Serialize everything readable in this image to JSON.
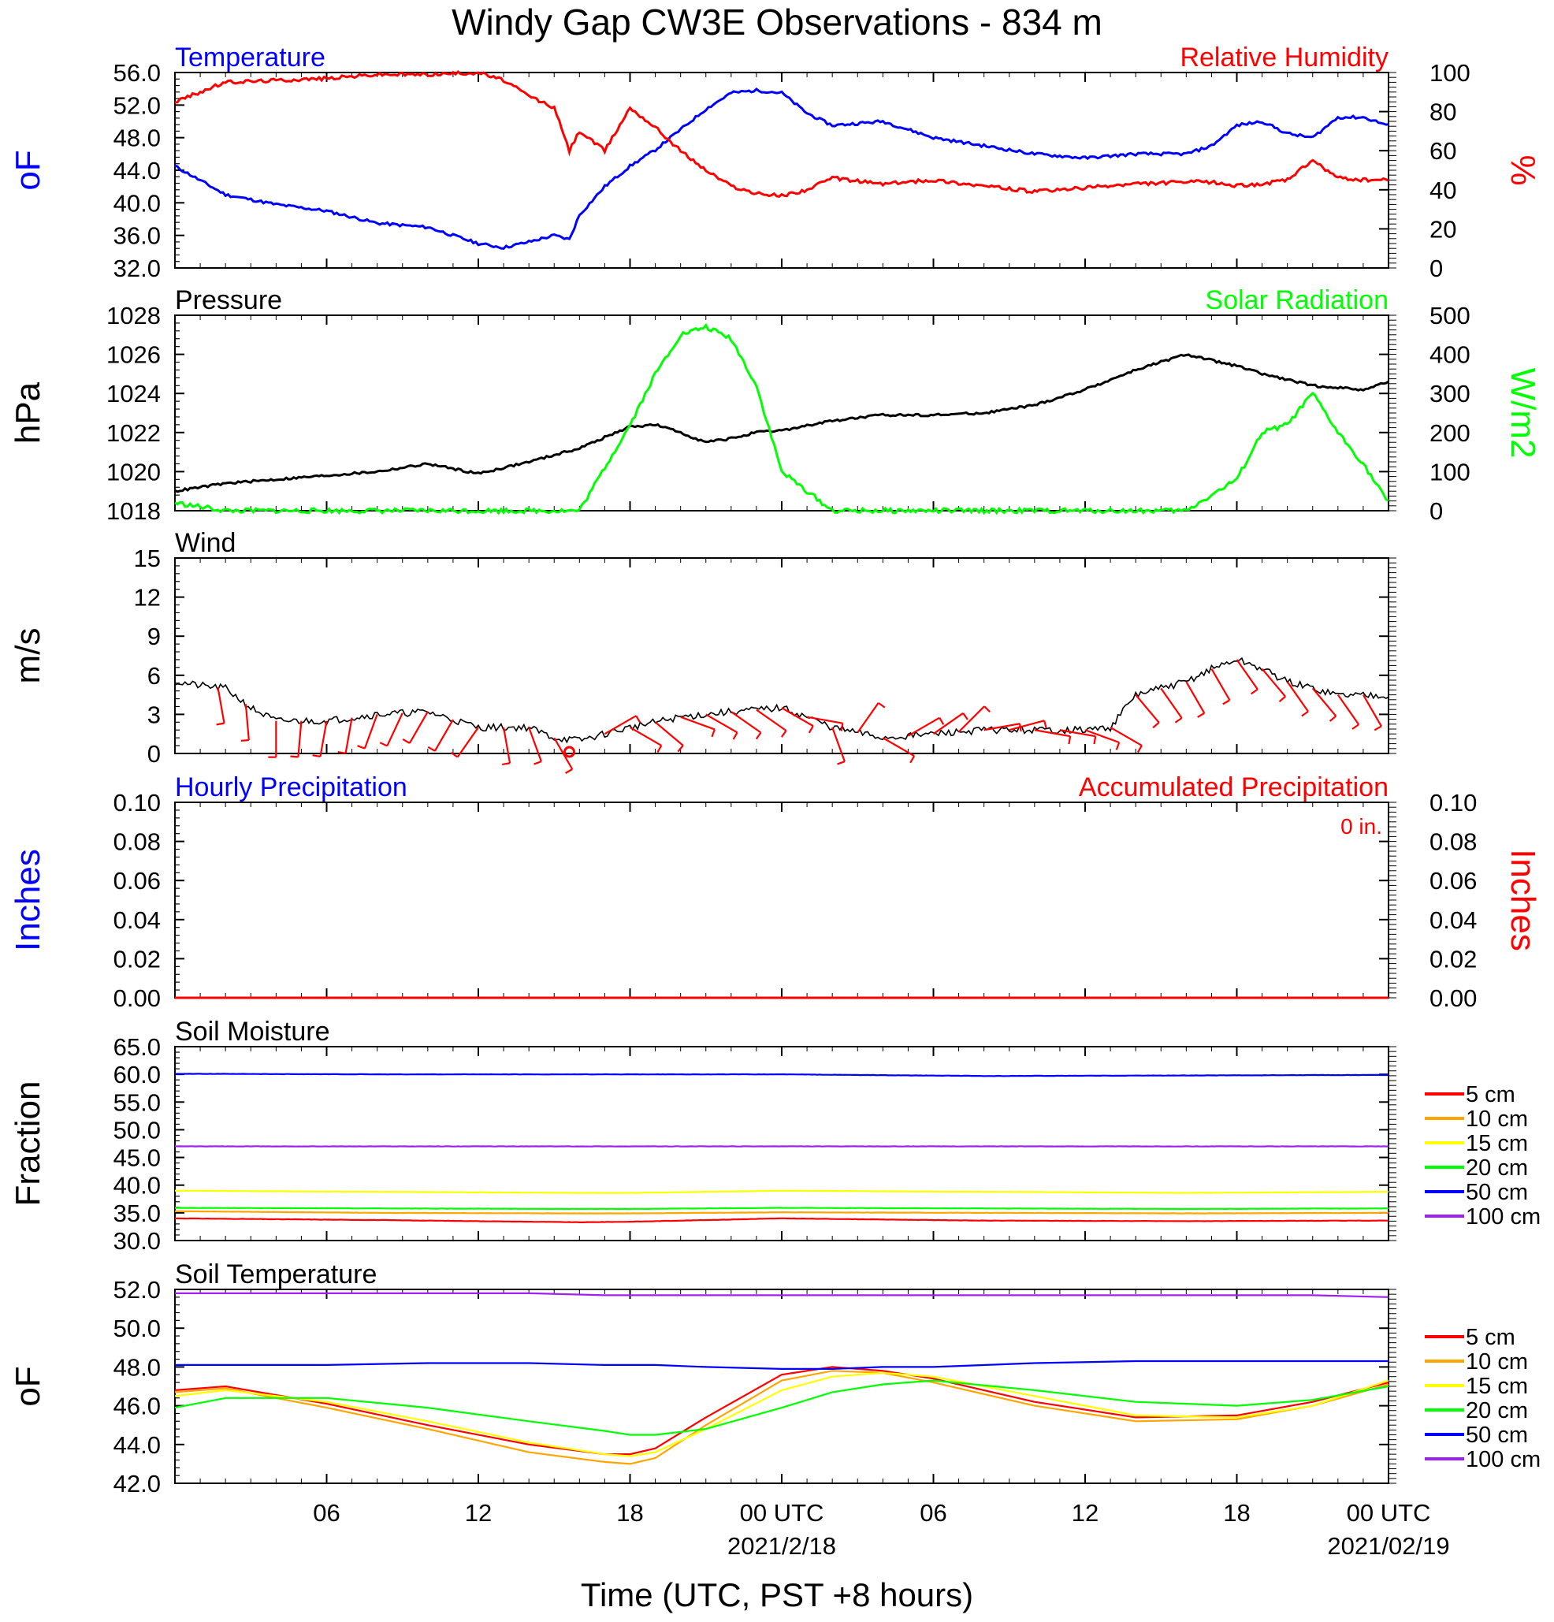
{
  "title": "Windy Gap CW3E Observations - 834 m",
  "x_axis": {
    "title": "Time (UTC, PST +8 hours)",
    "tick_labels": [
      "06",
      "12",
      "18",
      "00 UTC",
      "06",
      "12",
      "18",
      "00 UTC"
    ],
    "date_labels": [
      "2021/2/18",
      "2021/02/19"
    ]
  },
  "colors": {
    "blue": "#0000ff",
    "red": "#ff0000",
    "green": "#00ff00",
    "black": "#000000"
  },
  "chart_data": [
    {
      "type": "line",
      "panel": "Temperature / Relative Humidity",
      "title_left": "Temperature",
      "title_right": "Relative Humidity",
      "ylabel_left": "oF",
      "ylabel_right": "%",
      "ylim_left": [
        32,
        56
      ],
      "ylim_right": [
        0,
        100
      ],
      "yticks_left": [
        "32.0",
        "36.0",
        "40.0",
        "44.0",
        "48.0",
        "52.0",
        "56.0"
      ],
      "yticks_right": [
        "0",
        "20",
        "40",
        "60",
        "80",
        "100"
      ],
      "x_hours": [
        0,
        2,
        4,
        6,
        8,
        10,
        12,
        13,
        14,
        15,
        15.6,
        16,
        17,
        18,
        19,
        20,
        21,
        22,
        23,
        24,
        25,
        26,
        28,
        30,
        32,
        34,
        36,
        38,
        40,
        41,
        42,
        43,
        44,
        45,
        46,
        47,
        48
      ],
      "series": [
        {
          "name": "Temperature",
          "color": "#0000ff",
          "axis": "left",
          "values": [
            44.5,
            41.0,
            39.8,
            39.0,
            37.5,
            37.0,
            35.0,
            34.5,
            35.2,
            36.0,
            35.5,
            38.5,
            42.0,
            44.5,
            46.5,
            49.0,
            51.5,
            53.5,
            53.8,
            53.5,
            51.0,
            49.5,
            50.0,
            48.0,
            47.0,
            46.0,
            45.5,
            46.0,
            46.0,
            47.0,
            49.5,
            50.0,
            48.5,
            48.0,
            50.5,
            50.5,
            49.5
          ]
        },
        {
          "name": "Relative Humidity",
          "color": "#ff0000",
          "axis": "right",
          "values": [
            85,
            95,
            96,
            97,
            99,
            99,
            100,
            96,
            88,
            82,
            60,
            70,
            60,
            82,
            72,
            60,
            50,
            42,
            38,
            37,
            40,
            46,
            43,
            45,
            42,
            39,
            41,
            43,
            44,
            44,
            42,
            43,
            45,
            55,
            46,
            45,
            45
          ]
        }
      ]
    },
    {
      "type": "line",
      "panel": "Pressure / Solar Radiation",
      "title_left": "Pressure",
      "title_right": "Solar Radiation",
      "ylabel_left": "hPa",
      "ylabel_right": "W/m2",
      "ylim_left": [
        1018,
        1028
      ],
      "ylim_right": [
        0,
        500
      ],
      "yticks_left": [
        "1018",
        "1020",
        "1022",
        "1024",
        "1026",
        "1028"
      ],
      "yticks_right": [
        "0",
        "100",
        "200",
        "300",
        "400",
        "500"
      ],
      "x_hours": [
        0,
        2,
        4,
        6,
        8,
        10,
        12,
        14,
        16,
        18,
        19,
        20,
        21,
        22,
        23,
        24,
        26,
        28,
        30,
        32,
        34,
        36,
        38,
        40,
        42,
        43,
        44,
        45,
        46,
        47,
        48
      ],
      "series": [
        {
          "name": "Pressure",
          "color": "#000000",
          "axis": "left",
          "values": [
            1019.0,
            1019.4,
            1019.6,
            1019.8,
            1020.0,
            1020.4,
            1019.9,
            1020.5,
            1021.2,
            1022.3,
            1022.4,
            1022.0,
            1021.5,
            1021.7,
            1022.0,
            1022.1,
            1022.6,
            1022.9,
            1022.9,
            1023.0,
            1023.4,
            1024.2,
            1025.2,
            1026.0,
            1025.4,
            1025.0,
            1024.7,
            1024.4,
            1024.3,
            1024.2,
            1024.6
          ]
        },
        {
          "name": "Solar Radiation",
          "color": "#00ff00",
          "axis": "right",
          "values": [
            20,
            0,
            0,
            0,
            0,
            0,
            0,
            0,
            0,
            220,
            350,
            450,
            470,
            440,
            320,
            100,
            0,
            0,
            0,
            0,
            0,
            0,
            0,
            0,
            80,
            200,
            220,
            300,
            200,
            120,
            20
          ]
        }
      ]
    },
    {
      "type": "line",
      "panel": "Wind",
      "title_left": "Wind",
      "ylabel_left": "m/s",
      "ylim_left": [
        0,
        15
      ],
      "yticks_left": [
        "0",
        "3",
        "6",
        "9",
        "12",
        "15"
      ],
      "x_hours": [
        0,
        1,
        2,
        3,
        4,
        6,
        8,
        10,
        12,
        14,
        15,
        16,
        18,
        20,
        22,
        24,
        25,
        26,
        28,
        30,
        32,
        34,
        36,
        37,
        38,
        39,
        40,
        41,
        42,
        43,
        44,
        46,
        48
      ],
      "series": [
        {
          "name": "Wind Speed",
          "color": "#000000",
          "axis": "left",
          "values": [
            5.5,
            5.2,
            5.0,
            3.5,
            2.5,
            2.5,
            3.0,
            3.2,
            2.0,
            2.0,
            1.2,
            1.0,
            2.0,
            2.8,
            3.2,
            3.5,
            2.8,
            2.0,
            1.2,
            1.5,
            1.8,
            1.8,
            1.8,
            2.0,
            4.5,
            5.0,
            5.5,
            6.5,
            7.2,
            6.5,
            5.5,
            4.5,
            4.5
          ]
        }
      ],
      "calm_marker_hour": 15.6,
      "barbs": [
        {
          "h": 1.7,
          "dir": 350
        },
        {
          "h": 2.8,
          "dir": 355
        },
        {
          "h": 4.0,
          "dir": 0
        },
        {
          "h": 5.0,
          "dir": 5
        },
        {
          "h": 6.0,
          "dir": 10
        },
        {
          "h": 7.0,
          "dir": 10
        },
        {
          "h": 8.0,
          "dir": 20
        },
        {
          "h": 9.0,
          "dir": 25
        },
        {
          "h": 10.0,
          "dir": 30
        },
        {
          "h": 11.0,
          "dir": 30
        },
        {
          "h": 12.0,
          "dir": 35
        },
        {
          "h": 13.0,
          "dir": 350
        },
        {
          "h": 14.0,
          "dir": 340
        },
        {
          "h": 15.0,
          "dir": 330
        },
        {
          "h": 17.0,
          "dir": 240
        },
        {
          "h": 18.0,
          "dir": 300
        },
        {
          "h": 19.0,
          "dir": 310
        },
        {
          "h": 20.0,
          "dir": 290
        },
        {
          "h": 21.0,
          "dir": 300
        },
        {
          "h": 22.0,
          "dir": 305
        },
        {
          "h": 23.0,
          "dir": 305
        },
        {
          "h": 24.0,
          "dir": 300
        },
        {
          "h": 25.0,
          "dir": 280
        },
        {
          "h": 26.0,
          "dir": 340
        },
        {
          "h": 27.0,
          "dir": 215
        },
        {
          "h": 28.0,
          "dir": 300
        },
        {
          "h": 29.0,
          "dir": 240
        },
        {
          "h": 30.0,
          "dir": 235
        },
        {
          "h": 31.0,
          "dir": 225
        },
        {
          "h": 32.0,
          "dir": 260
        },
        {
          "h": 33.0,
          "dir": 255
        },
        {
          "h": 34.0,
          "dir": 280
        },
        {
          "h": 35.0,
          "dir": 280
        },
        {
          "h": 36.0,
          "dir": 290
        },
        {
          "h": 37.0,
          "dir": 300
        },
        {
          "h": 38.0,
          "dir": 320
        },
        {
          "h": 39.0,
          "dir": 325
        },
        {
          "h": 40.0,
          "dir": 330
        },
        {
          "h": 41.0,
          "dir": 330
        },
        {
          "h": 42.0,
          "dir": 325
        },
        {
          "h": 43.0,
          "dir": 320
        },
        {
          "h": 44.0,
          "dir": 325
        },
        {
          "h": 45.0,
          "dir": 320
        },
        {
          "h": 46.0,
          "dir": 325
        },
        {
          "h": 47.0,
          "dir": 330
        }
      ]
    },
    {
      "type": "line",
      "panel": "Precipitation",
      "title_left": "Hourly Precipitation",
      "title_right": "Accumulated Precipitation",
      "annotation": "0 in.",
      "ylabel_left": "Inches",
      "ylabel_right": "Inches",
      "ylim_left": [
        0,
        0.1
      ],
      "ylim_right": [
        0,
        0.1
      ],
      "yticks_left": [
        "0.00",
        "0.02",
        "0.04",
        "0.06",
        "0.08",
        "0.10"
      ],
      "yticks_right": [
        "0.00",
        "0.02",
        "0.04",
        "0.06",
        "0.08",
        "0.10"
      ],
      "x_hours": [
        0,
        48
      ],
      "series": [
        {
          "name": "Hourly Precipitation",
          "color": "#0000ff",
          "axis": "left",
          "values": [
            0,
            0
          ]
        },
        {
          "name": "Accumulated Precipitation",
          "color": "#ff0000",
          "axis": "right",
          "values": [
            0,
            0
          ]
        }
      ]
    },
    {
      "type": "line",
      "panel": "Soil Moisture",
      "title_left": "Soil Moisture",
      "ylabel_left": "Fraction",
      "ylim_left": [
        30,
        65
      ],
      "yticks_left": [
        "30.0",
        "35.0",
        "40.0",
        "45.0",
        "50.0",
        "55.0",
        "60.0",
        "65.0"
      ],
      "x_hours": [
        0,
        8,
        16,
        18,
        24,
        32,
        40,
        48
      ],
      "series": [
        {
          "name": "5 cm",
          "color": "#ff0000",
          "values": [
            34.0,
            33.7,
            33.3,
            33.4,
            34.0,
            33.6,
            33.5,
            33.6
          ]
        },
        {
          "name": "10 cm",
          "color": "#ffa500",
          "values": [
            35.3,
            35.0,
            34.9,
            34.9,
            35.1,
            35.0,
            34.9,
            35.0
          ]
        },
        {
          "name": "15 cm",
          "color": "#ffff00",
          "values": [
            39.0,
            38.8,
            38.6,
            38.6,
            39.0,
            38.8,
            38.6,
            38.8
          ]
        },
        {
          "name": "20 cm",
          "color": "#00ff00",
          "values": [
            35.9,
            35.8,
            35.7,
            35.7,
            35.9,
            35.8,
            35.7,
            35.8
          ]
        },
        {
          "name": "50 cm",
          "color": "#0000ff",
          "values": [
            60.1,
            60.0,
            60.0,
            60.0,
            60.0,
            59.7,
            59.8,
            59.9
          ]
        },
        {
          "name": "100 cm",
          "color": "#a020f0",
          "values": [
            47.0,
            47.0,
            47.0,
            47.0,
            47.0,
            47.0,
            47.0,
            47.0
          ]
        }
      ]
    },
    {
      "type": "line",
      "panel": "Soil Temperature",
      "title_left": "Soil Temperature",
      "ylabel_left": "oF",
      "ylim_left": [
        42,
        52
      ],
      "yticks_left": [
        "42.0",
        "44.0",
        "46.0",
        "48.0",
        "50.0",
        "52.0"
      ],
      "x_hours": [
        0,
        2,
        6,
        10,
        14,
        17,
        18,
        19,
        21,
        24,
        26,
        28,
        30,
        34,
        38,
        42,
        45,
        48
      ],
      "series": [
        {
          "name": "5 cm",
          "color": "#ff0000",
          "values": [
            46.8,
            47.0,
            46.1,
            45.0,
            44.0,
            43.5,
            43.5,
            43.8,
            45.4,
            47.6,
            48.0,
            47.8,
            47.4,
            46.2,
            45.4,
            45.5,
            46.2,
            47.2
          ]
        },
        {
          "name": "10 cm",
          "color": "#ffa500",
          "values": [
            46.7,
            46.9,
            45.9,
            44.8,
            43.6,
            43.1,
            43.0,
            43.3,
            45.0,
            47.3,
            47.8,
            47.7,
            47.2,
            46.0,
            45.2,
            45.3,
            46.0,
            47.1
          ]
        },
        {
          "name": "15 cm",
          "color": "#ffff00",
          "values": [
            46.5,
            46.8,
            46.2,
            45.2,
            44.1,
            43.5,
            43.4,
            43.6,
            44.8,
            46.8,
            47.5,
            47.7,
            47.5,
            46.5,
            45.5,
            45.4,
            46.0,
            47.3
          ]
        },
        {
          "name": "20 cm",
          "color": "#00ff00",
          "values": [
            45.9,
            46.4,
            46.4,
            45.9,
            45.2,
            44.7,
            44.5,
            44.5,
            44.8,
            45.9,
            46.7,
            47.1,
            47.3,
            46.8,
            46.2,
            46.0,
            46.3,
            47.0
          ]
        },
        {
          "name": "50 cm",
          "color": "#0000ff",
          "values": [
            48.1,
            48.1,
            48.1,
            48.2,
            48.2,
            48.1,
            48.1,
            48.1,
            48.0,
            47.9,
            47.9,
            48.0,
            48.0,
            48.2,
            48.3,
            48.3,
            48.3,
            48.3
          ]
        },
        {
          "name": "100 cm",
          "color": "#a020f0",
          "values": [
            51.8,
            51.8,
            51.8,
            51.8,
            51.8,
            51.7,
            51.7,
            51.7,
            51.7,
            51.7,
            51.7,
            51.7,
            51.7,
            51.7,
            51.7,
            51.7,
            51.7,
            51.6
          ]
        }
      ]
    }
  ]
}
